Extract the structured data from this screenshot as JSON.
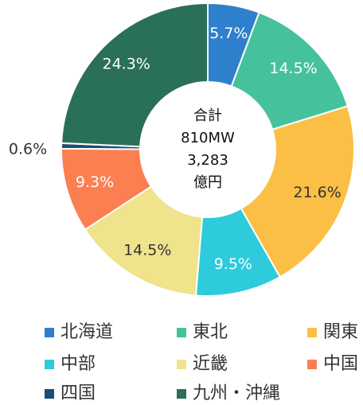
{
  "chart_data": {
    "type": "donut",
    "categories": [
      "北海道",
      "東北",
      "関東",
      "中部",
      "近畿",
      "中国",
      "四国",
      "九州・沖縄"
    ],
    "values": [
      5.7,
      14.5,
      21.6,
      9.5,
      14.5,
      9.3,
      0.6,
      24.3
    ],
    "value_labels": [
      "5.7%",
      "14.5%",
      "21.6%",
      "9.5%",
      "14.5%",
      "9.3%",
      "0.6%",
      "24.3%"
    ],
    "colors": [
      "#2e80cc",
      "#45c19b",
      "#fcbf45",
      "#2dcbdb",
      "#efe38b",
      "#fb7f50",
      "#1d4d74",
      "#2a6f58"
    ],
    "center_label": [
      "合計",
      "810MW",
      "3,283",
      "億円"
    ],
    "legend": true
  }
}
